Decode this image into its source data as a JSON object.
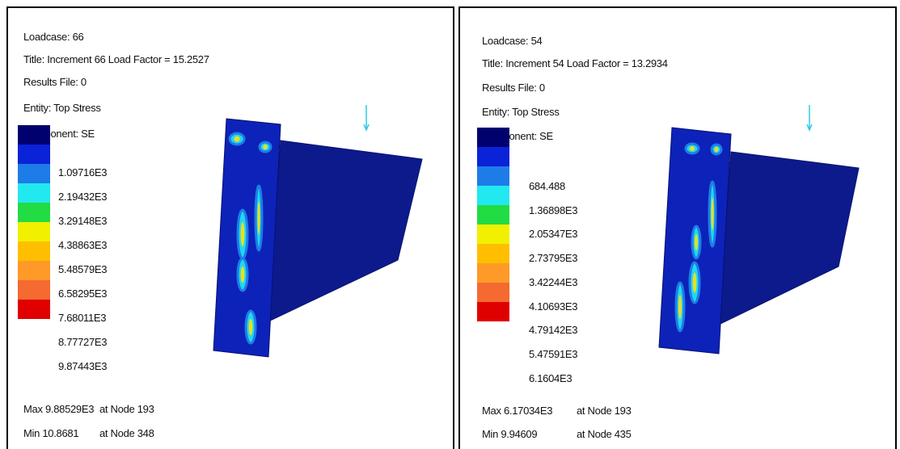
{
  "panels": [
    {
      "loadcase": "Loadcase: 66",
      "title": "Title: Increment 66 Load Factor = 15.2527",
      "results_file": "Results File: 0",
      "entity": "Entity: Top Stress",
      "component": "Component: SE",
      "legend": [
        "1.09716E3",
        "2.19432E3",
        "3.29148E3",
        "4.38863E3",
        "5.48579E3",
        "6.58295E3",
        "7.68011E3",
        "8.77727E3",
        "9.87443E3"
      ],
      "max": "Max 9.88529E3",
      "max_node": "at Node 193",
      "min": "Min 10.8681",
      "min_node": "at Node 348"
    },
    {
      "loadcase": "Loadcase: 54",
      "title": "Title: Increment 54 Load Factor = 13.2934",
      "results_file": "Results File: 0",
      "entity": "Entity: Top Stress",
      "component": "Component: SE",
      "legend": [
        "684.488",
        "1.36898E3",
        "2.05347E3",
        "2.73795E3",
        "3.42244E3",
        "4.10693E3",
        "4.79142E3",
        "5.47591E3",
        "6.1604E3"
      ],
      "max": "Max 6.17034E3",
      "max_node": "at Node 193",
      "min": "Min 9.94609",
      "min_node": "at Node 435"
    }
  ]
}
